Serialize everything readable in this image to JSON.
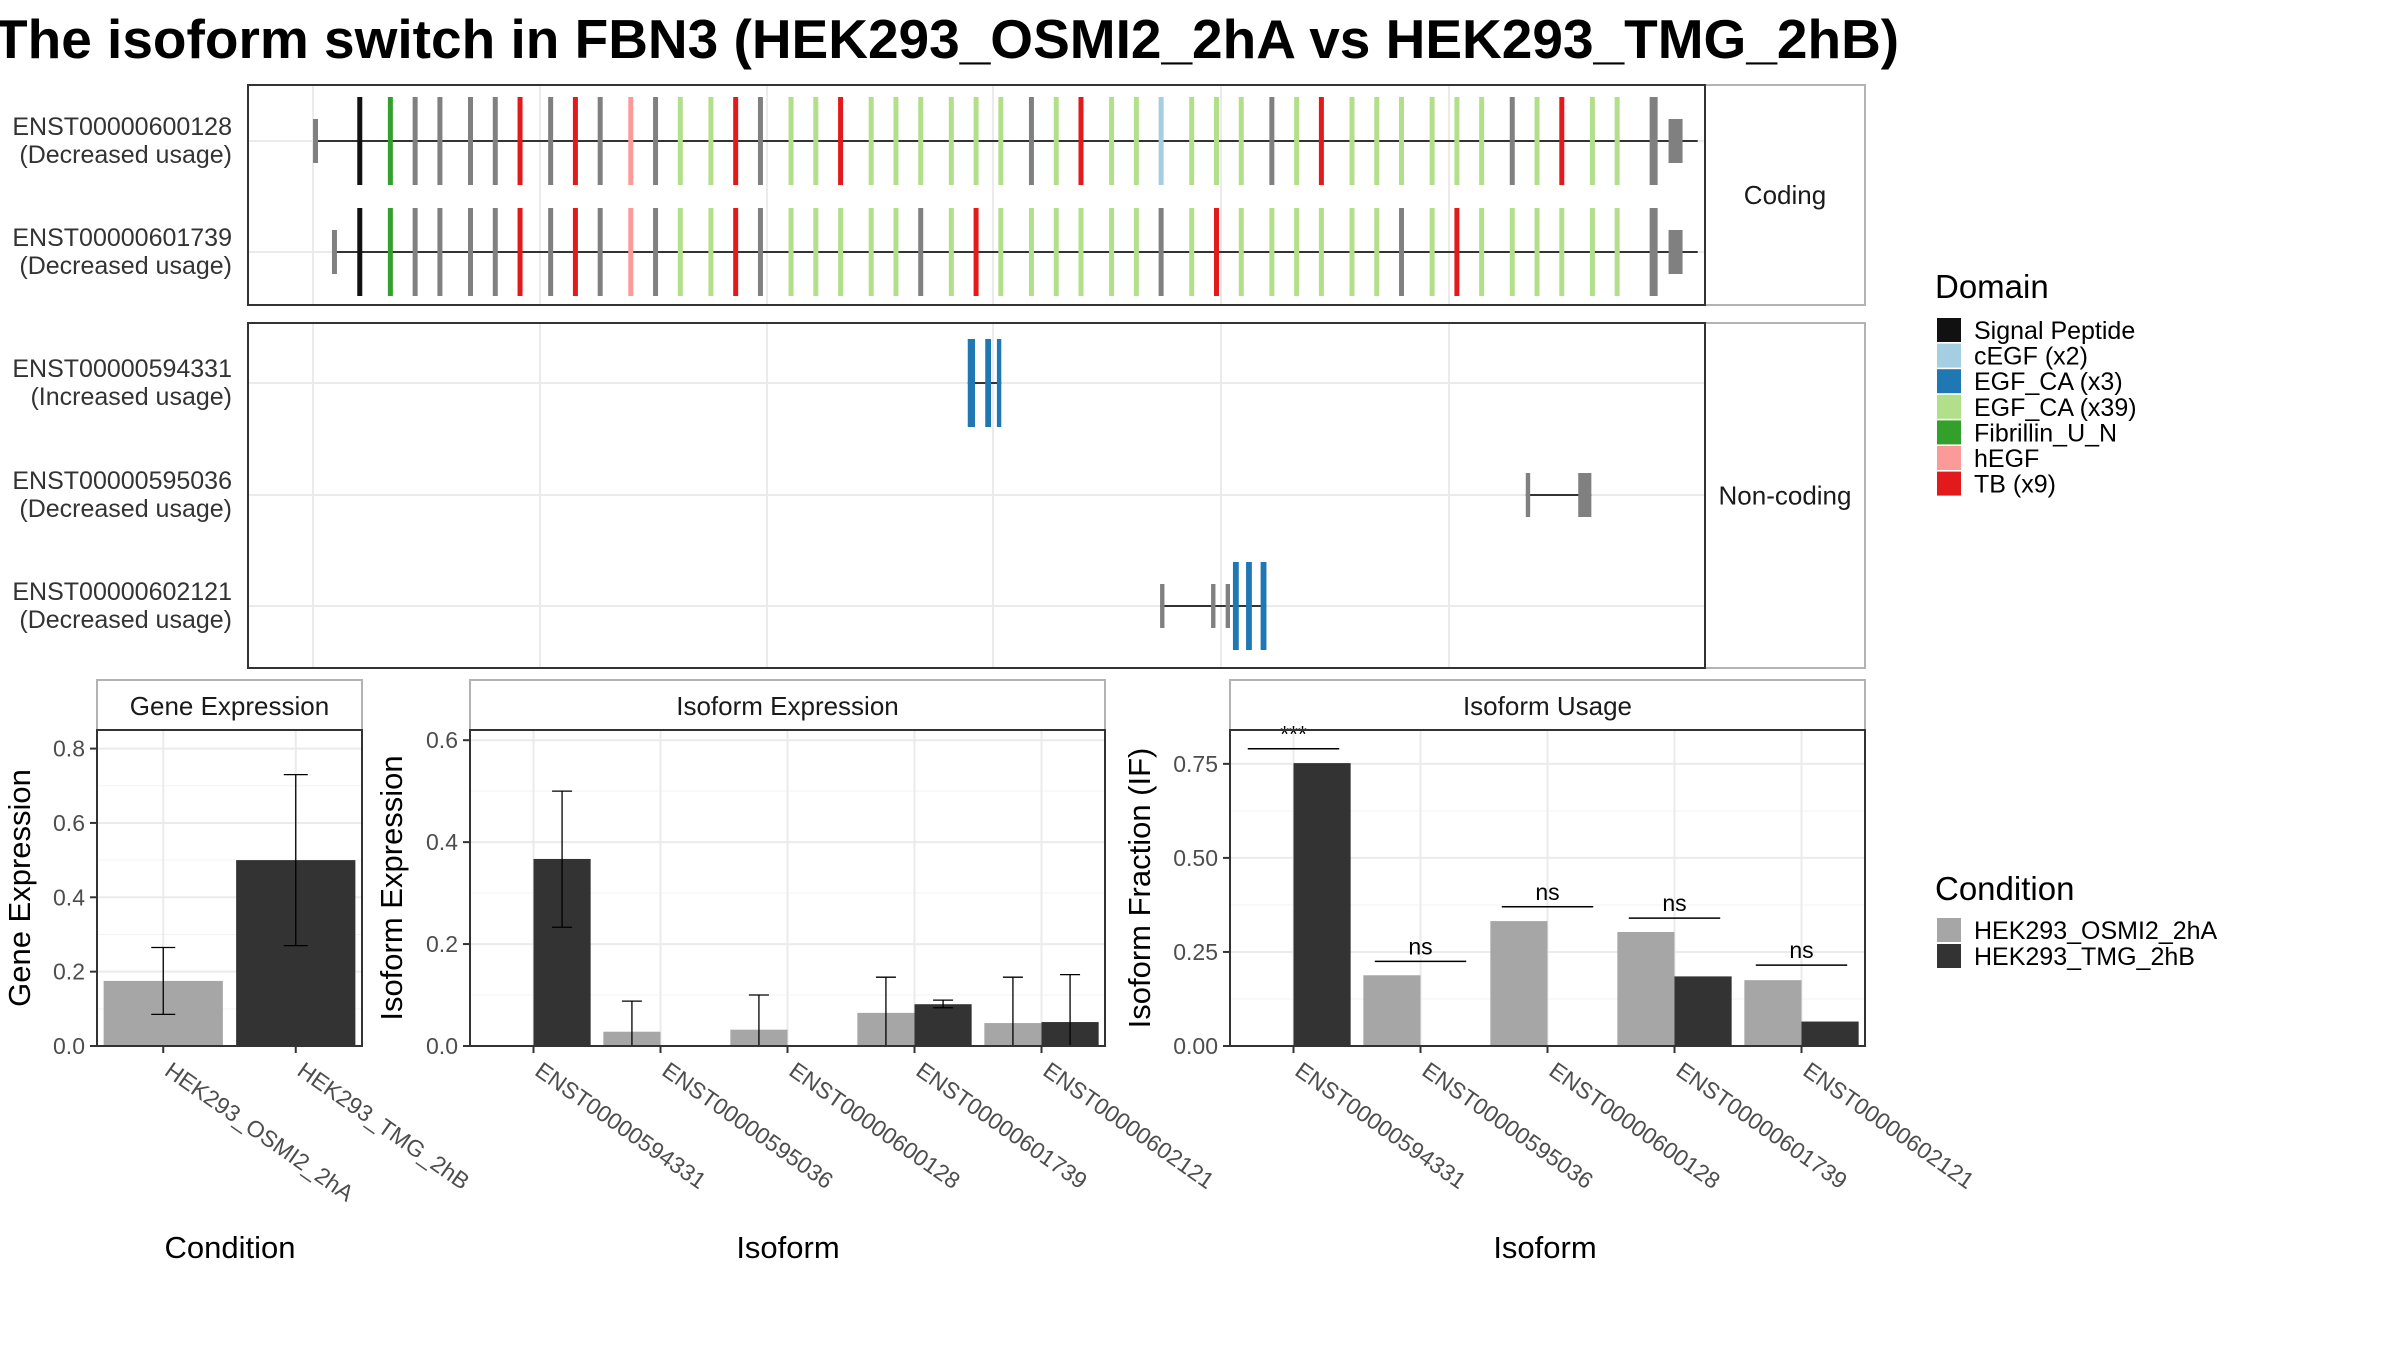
{
  "title": "The isoform switch in FBN3 (HEK293_OSMI2_2hA vs HEK293_TMG_2hB)",
  "colors": {
    "condition_a": "#a6a6a6",
    "condition_b": "#333333",
    "intron": "#333333",
    "exon_noncoding": "#808080",
    "panel_border": "#333333",
    "strip_border": "#b3b3b3",
    "grid": "#ebebeb"
  },
  "domains": [
    {
      "name": "Signal Peptide",
      "color": "#111111"
    },
    {
      "name": "cEGF (x2)",
      "color": "#a6cee3"
    },
    {
      "name": "EGF_CA (x3)",
      "color": "#1f78b4"
    },
    {
      "name": "EGF_CA (x39)",
      "color": "#b2df8a"
    },
    {
      "name": "Fibrillin_U_N",
      "color": "#33a02c"
    },
    {
      "name": "hEGF",
      "color": "#fb9a99"
    },
    {
      "name": "TB (x9)",
      "color": "#e31a1c"
    }
  ],
  "legend": {
    "domain_title": "Domain",
    "condition_title": "Condition",
    "conditions": [
      "HEK293_OSMI2_2hA",
      "HEK293_TMG_2hB"
    ]
  },
  "structure": {
    "coding_label": "Coding",
    "noncoding_label": "Non-coding",
    "coding": [
      {
        "id": "ENST00000600128",
        "usage": "(Decreased usage)",
        "start": 0.046,
        "end": 0.995,
        "first_exon": 0.046
      },
      {
        "id": "ENST00000601739",
        "usage": "(Decreased usage)",
        "start": 0.059,
        "end": 0.995,
        "first_exon": 0.059
      }
    ],
    "noncoding": [
      {
        "id": "ENST00000594331",
        "usage": "(Increased usage)",
        "start": 0.494,
        "end": 0.517,
        "exons": [
          [
            0.494,
            0.499,
            "EGF_CA (x3)"
          ],
          [
            0.506,
            0.51,
            "EGF_CA (x3)"
          ],
          [
            0.514,
            0.517,
            "EGF_CA (x3)"
          ]
        ]
      },
      {
        "id": "ENST00000595036",
        "usage": "(Decreased usage)",
        "start": 0.877,
        "end": 0.922,
        "exons": [
          [
            0.877,
            0.88,
            null
          ],
          [
            0.913,
            0.922,
            null
          ]
        ]
      },
      {
        "id": "ENST00000602121",
        "usage": "(Decreased usage)",
        "start": 0.626,
        "end": 0.699,
        "exons": [
          [
            0.626,
            0.629,
            null
          ],
          [
            0.661,
            0.664,
            null
          ],
          [
            0.671,
            0.674,
            null
          ],
          [
            0.676,
            0.68,
            "EGF_CA (x3)"
          ],
          [
            0.685,
            0.689,
            "EGF_CA (x3)"
          ],
          [
            0.695,
            0.699,
            "EGF_CA (x3)"
          ]
        ]
      }
    ]
  },
  "chart_data": [
    {
      "type": "bar",
      "title": "Gene Expression",
      "xlabel": "Condition",
      "ylabel": "Gene Expression",
      "categories": [
        "HEK293_OSMI2_2hA",
        "HEK293_TMG_2hB"
      ],
      "values": [
        0.175,
        0.5
      ],
      "error_low": [
        0.085,
        0.27
      ],
      "error_high": [
        0.265,
        0.73
      ],
      "ylim": [
        0,
        0.85
      ],
      "yticks": [
        "0.0",
        "0.2",
        "0.4",
        "0.6",
        "0.8"
      ],
      "ytick_values": [
        0,
        0.2,
        0.4,
        0.6,
        0.8
      ]
    },
    {
      "type": "bar",
      "title": "Isoform Expression",
      "xlabel": "Isoform",
      "ylabel": "Isoform Expression",
      "categories": [
        "ENST00000594331",
        "ENST00000595036",
        "ENST00000600128",
        "ENST00000601739",
        "ENST00000602121"
      ],
      "series": [
        {
          "name": "HEK293_OSMI2_2hA",
          "values": [
            0.0,
            0.028,
            0.032,
            0.065,
            0.045
          ],
          "error_low": [
            0.0,
            0.0,
            0.0,
            0.0,
            0.0
          ],
          "error_high": [
            0.0,
            0.088,
            0.1,
            0.135,
            0.135
          ]
        },
        {
          "name": "HEK293_TMG_2hB",
          "values": [
            0.367,
            0.0,
            0.0,
            0.082,
            0.047
          ],
          "error_low": [
            0.233,
            0.0,
            0.0,
            0.075,
            0.0
          ],
          "error_high": [
            0.5,
            0.0,
            0.0,
            0.09,
            0.14
          ]
        }
      ],
      "ylim": [
        0,
        0.62
      ],
      "yticks": [
        "0.0",
        "0.2",
        "0.4",
        "0.6"
      ],
      "ytick_values": [
        0,
        0.2,
        0.4,
        0.6
      ]
    },
    {
      "type": "bar",
      "title": "Isoform Usage",
      "xlabel": "Isoform",
      "ylabel": "Isoform Fraction (IF)",
      "categories": [
        "ENST00000594331",
        "ENST00000595036",
        "ENST00000600128",
        "ENST00000601739",
        "ENST00000602121"
      ],
      "series": [
        {
          "name": "HEK293_OSMI2_2hA",
          "values": [
            0.0,
            0.188,
            0.332,
            0.303,
            0.175
          ]
        },
        {
          "name": "HEK293_TMG_2hB",
          "values": [
            0.752,
            0.0,
            0.0,
            0.185,
            0.065
          ]
        }
      ],
      "significance": [
        "***",
        "ns",
        "ns",
        "ns",
        "ns"
      ],
      "sig_y": [
        0.79,
        0.225,
        0.37,
        0.34,
        0.215
      ],
      "ylim": [
        0,
        0.84
      ],
      "yticks": [
        "0.00",
        "0.25",
        "0.50",
        "0.75"
      ],
      "ytick_values": [
        0,
        0.25,
        0.5,
        0.75
      ]
    }
  ]
}
